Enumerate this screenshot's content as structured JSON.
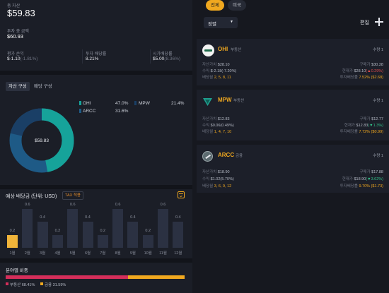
{
  "summary": {
    "total_label": "총 자산",
    "total_value": "$59.83",
    "invest_label": "투자 총 금액",
    "invest_value": "$60.93",
    "pl_label": "평가 손익",
    "pl_value": "$-1.10",
    "pl_pct": "(-1.81%)",
    "yield_label": "투자 배당률",
    "yield_value": "8.21%",
    "mkt_label": "시가배당률",
    "mkt_value": "$5.00",
    "mkt_pct": "(8.36%)"
  },
  "tabs": {
    "composition": "자산 구성",
    "dividend": "배당 구성"
  },
  "donut": {
    "center": "$59.83",
    "legend": [
      {
        "name": "OHI",
        "pct": "47.0%",
        "color": "#16a39a"
      },
      {
        "name": "MPW",
        "pct": "21.4%",
        "color": "#1a3f66"
      },
      {
        "name": "ARCC",
        "pct": "31.6%",
        "color": "#1e5a86"
      }
    ]
  },
  "chart_data": {
    "type": "bar",
    "title": "예상 배당금 (단위: USD)",
    "badge": "TAX 적용",
    "categories": [
      "1월",
      "2월",
      "3월",
      "4월",
      "5월",
      "6월",
      "7월",
      "8월",
      "9월",
      "10월",
      "11월",
      "12월"
    ],
    "values": [
      0.2,
      0.6,
      0.4,
      0.2,
      0.6,
      0.4,
      0.2,
      0.6,
      0.4,
      0.2,
      0.6,
      0.4
    ],
    "highlight_index": 0,
    "highlight_color": "#f0b43a",
    "bar_color": "#2b3142"
  },
  "sector": {
    "title": "분야별 비중",
    "items": [
      {
        "name": "부동산",
        "pct": "68.41%",
        "color": "#d42e5a",
        "value": 68.41
      },
      {
        "name": "금융",
        "pct": "31.59%",
        "color": "#f0a81f",
        "value": 31.59
      }
    ]
  },
  "right": {
    "tab_all": "전체",
    "tab_us": "미국",
    "sort": "정렬",
    "edit": "편집",
    "stocks": [
      {
        "ticker": "OHI",
        "sector": "부동산",
        "qty": "수량 1",
        "r1l_label": "자산가치",
        "r1l": "$28.10",
        "r1r_label": "구매가",
        "r1r": "$30.28",
        "r2l_label": "수익",
        "r2l": "$-2.18(-7.20%)",
        "r2r_label": "현재가",
        "r2r_price": "$28.10",
        "r2r_chg": "(▲0.29%)",
        "r3l_label": "배당월",
        "r3l": "2, 5, 8, 11",
        "r3r_label": "투자배당률",
        "r3r": "7.52% ($2.68)"
      },
      {
        "ticker": "MPW",
        "sector": "부동산",
        "qty": "수량 1",
        "r1l_label": "자산가치",
        "r1l": "$12.83",
        "r1r_label": "구매가",
        "r1r": "$12.77",
        "r2l_label": "수익",
        "r2l": "$0.06(0.49%)",
        "r2r_label": "현재가",
        "r2r_price": "$12.83",
        "r2r_chg": "(▼1.3%)",
        "r3l_label": "배당월",
        "r3l": "1, 4, 7, 10",
        "r3r_label": "투자배당률",
        "r3r": "7.72% ($0.99)"
      },
      {
        "ticker": "ARCC",
        "sector": "금융",
        "qty": "수량 1",
        "r1l_label": "자산가치",
        "r1l": "$18.90",
        "r1r_label": "구매가",
        "r1r": "$17.88",
        "r2l_label": "수익",
        "r2l": "$1.02(5.70%)",
        "r2r_label": "현재가",
        "r2r_price": "$18.90",
        "r2r_chg": "(▼3.62%)",
        "r3l_label": "배당월",
        "r3l": "3, 6, 9, 12",
        "r3r_label": "투자배당률",
        "r3r": "9.70% ($1.73)"
      }
    ]
  }
}
